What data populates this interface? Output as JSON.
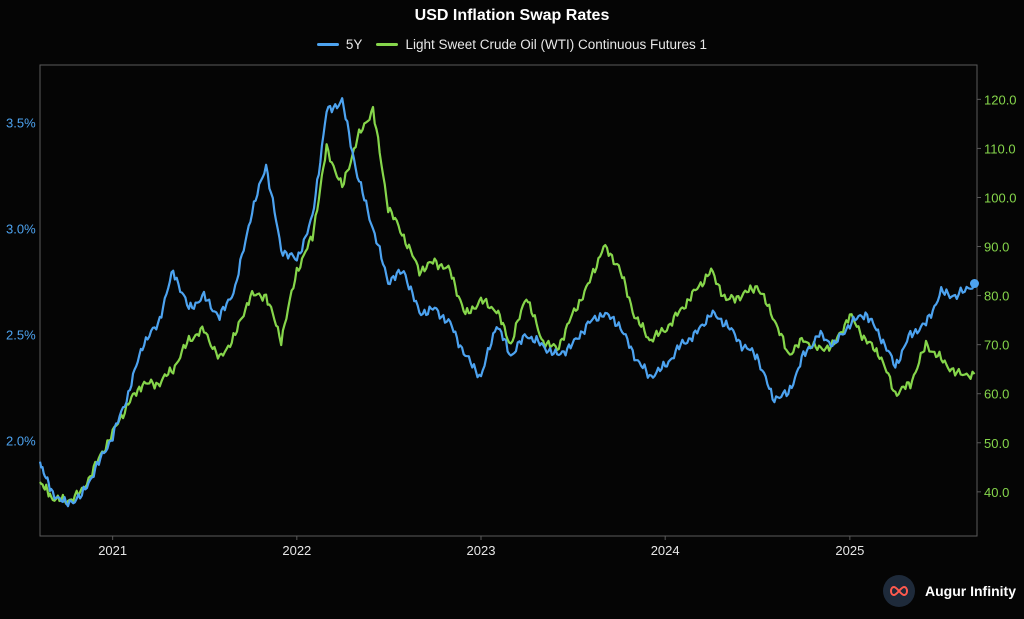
{
  "chart_data": {
    "type": "line",
    "title": "USD Inflation Swap Rates",
    "x_ticks": [
      "2021",
      "2022",
      "2023",
      "2024",
      "2025"
    ],
    "xlim": [
      "2020-08-10",
      "2025-09-10"
    ],
    "y_left": {
      "ticks": [
        "2.0%",
        "2.5%",
        "3.0%",
        "3.5%"
      ],
      "tick_values": [
        2.0,
        2.5,
        3.0,
        3.5
      ],
      "range": [
        1.55,
        3.77
      ],
      "color": "#4da3f0"
    },
    "y_right": {
      "ticks": [
        "40.0",
        "50.0",
        "60.0",
        "70.0",
        "80.0",
        "90.0",
        "100.0",
        "110.0",
        "120.0"
      ],
      "tick_values": [
        40,
        50,
        60,
        70,
        80,
        90,
        100,
        110,
        120
      ],
      "range": [
        31,
        127
      ],
      "color": "#86d64b"
    },
    "grid": false,
    "legend_position": "top-center",
    "series": [
      {
        "name": "5Y",
        "color": "#4da3f0",
        "axis": "left",
        "points": [
          [
            "2020-08-10",
            1.9
          ],
          [
            "2020-09-01",
            1.76
          ],
          [
            "2020-10-01",
            1.7
          ],
          [
            "2020-11-01",
            1.74
          ],
          [
            "2020-12-01",
            1.88
          ],
          [
            "2021-01-01",
            2.02
          ],
          [
            "2021-02-01",
            2.22
          ],
          [
            "2021-03-01",
            2.45
          ],
          [
            "2021-04-01",
            2.55
          ],
          [
            "2021-05-01",
            2.8
          ],
          [
            "2021-06-01",
            2.62
          ],
          [
            "2021-07-01",
            2.68
          ],
          [
            "2021-08-01",
            2.58
          ],
          [
            "2021-09-01",
            2.72
          ],
          [
            "2021-10-01",
            3.05
          ],
          [
            "2021-11-01",
            3.3
          ],
          [
            "2021-12-01",
            2.9
          ],
          [
            "2022-01-01",
            2.85
          ],
          [
            "2022-02-01",
            3.05
          ],
          [
            "2022-03-01",
            3.55
          ],
          [
            "2022-04-01",
            3.6
          ],
          [
            "2022-05-01",
            3.25
          ],
          [
            "2022-06-01",
            3.0
          ],
          [
            "2022-07-01",
            2.75
          ],
          [
            "2022-08-01",
            2.8
          ],
          [
            "2022-09-01",
            2.6
          ],
          [
            "2022-10-01",
            2.62
          ],
          [
            "2022-11-01",
            2.55
          ],
          [
            "2022-12-01",
            2.4
          ],
          [
            "2023-01-01",
            2.3
          ],
          [
            "2023-02-01",
            2.55
          ],
          [
            "2023-03-01",
            2.4
          ],
          [
            "2023-04-01",
            2.5
          ],
          [
            "2023-05-01",
            2.45
          ],
          [
            "2023-06-01",
            2.4
          ],
          [
            "2023-07-01",
            2.45
          ],
          [
            "2023-08-01",
            2.55
          ],
          [
            "2023-09-01",
            2.6
          ],
          [
            "2023-10-01",
            2.55
          ],
          [
            "2023-11-01",
            2.4
          ],
          [
            "2023-12-01",
            2.3
          ],
          [
            "2024-01-01",
            2.35
          ],
          [
            "2024-02-01",
            2.45
          ],
          [
            "2024-03-01",
            2.5
          ],
          [
            "2024-04-01",
            2.6
          ],
          [
            "2024-05-01",
            2.55
          ],
          [
            "2024-06-01",
            2.45
          ],
          [
            "2024-07-01",
            2.4
          ],
          [
            "2024-08-01",
            2.2
          ],
          [
            "2024-09-01",
            2.22
          ],
          [
            "2024-10-01",
            2.4
          ],
          [
            "2024-11-01",
            2.5
          ],
          [
            "2024-12-01",
            2.45
          ],
          [
            "2025-01-01",
            2.55
          ],
          [
            "2025-02-01",
            2.6
          ],
          [
            "2025-03-01",
            2.5
          ],
          [
            "2025-04-01",
            2.35
          ],
          [
            "2025-05-01",
            2.5
          ],
          [
            "2025-06-01",
            2.55
          ],
          [
            "2025-07-01",
            2.7
          ],
          [
            "2025-08-01",
            2.68
          ],
          [
            "2025-09-05",
            2.74
          ]
        ]
      },
      {
        "name": "Light Sweet Crude Oil (WTI) Continuous Futures 1",
        "color": "#86d64b",
        "axis": "right",
        "points": [
          [
            "2020-08-10",
            42
          ],
          [
            "2020-09-01",
            39
          ],
          [
            "2020-10-01",
            38
          ],
          [
            "2020-11-01",
            40
          ],
          [
            "2020-12-01",
            46
          ],
          [
            "2021-01-01",
            52
          ],
          [
            "2021-02-01",
            58
          ],
          [
            "2021-03-01",
            62
          ],
          [
            "2021-04-01",
            62
          ],
          [
            "2021-05-01",
            65
          ],
          [
            "2021-06-01",
            71
          ],
          [
            "2021-07-01",
            73
          ],
          [
            "2021-08-01",
            67
          ],
          [
            "2021-09-01",
            72
          ],
          [
            "2021-10-01",
            80
          ],
          [
            "2021-11-01",
            80
          ],
          [
            "2021-12-01",
            71
          ],
          [
            "2022-01-01",
            85
          ],
          [
            "2022-02-01",
            92
          ],
          [
            "2022-03-01",
            110
          ],
          [
            "2022-04-01",
            102
          ],
          [
            "2022-05-01",
            112
          ],
          [
            "2022-06-01",
            118
          ],
          [
            "2022-07-01",
            98
          ],
          [
            "2022-08-01",
            92
          ],
          [
            "2022-09-01",
            85
          ],
          [
            "2022-10-01",
            87
          ],
          [
            "2022-11-01",
            85
          ],
          [
            "2022-12-01",
            76
          ],
          [
            "2023-01-01",
            79
          ],
          [
            "2023-02-01",
            77
          ],
          [
            "2023-03-01",
            70
          ],
          [
            "2023-04-01",
            80
          ],
          [
            "2023-05-01",
            71
          ],
          [
            "2023-06-01",
            69
          ],
          [
            "2023-07-01",
            76
          ],
          [
            "2023-08-01",
            82
          ],
          [
            "2023-09-01",
            90
          ],
          [
            "2023-10-01",
            86
          ],
          [
            "2023-11-01",
            76
          ],
          [
            "2023-12-01",
            71
          ],
          [
            "2024-01-01",
            73
          ],
          [
            "2024-02-01",
            77
          ],
          [
            "2024-03-01",
            81
          ],
          [
            "2024-04-01",
            85
          ],
          [
            "2024-05-01",
            79
          ],
          [
            "2024-06-01",
            80
          ],
          [
            "2024-07-01",
            82
          ],
          [
            "2024-08-01",
            76
          ],
          [
            "2024-09-01",
            68
          ],
          [
            "2024-10-01",
            71
          ],
          [
            "2024-11-01",
            69
          ],
          [
            "2024-12-01",
            70
          ],
          [
            "2025-01-01",
            76
          ],
          [
            "2025-02-01",
            71
          ],
          [
            "2025-03-01",
            68
          ],
          [
            "2025-04-01",
            60
          ],
          [
            "2025-05-01",
            62
          ],
          [
            "2025-06-01",
            70
          ],
          [
            "2025-07-01",
            67
          ],
          [
            "2025-08-01",
            64
          ],
          [
            "2025-09-05",
            64
          ]
        ]
      }
    ]
  },
  "branding": {
    "name": "Augur Infinity"
  }
}
